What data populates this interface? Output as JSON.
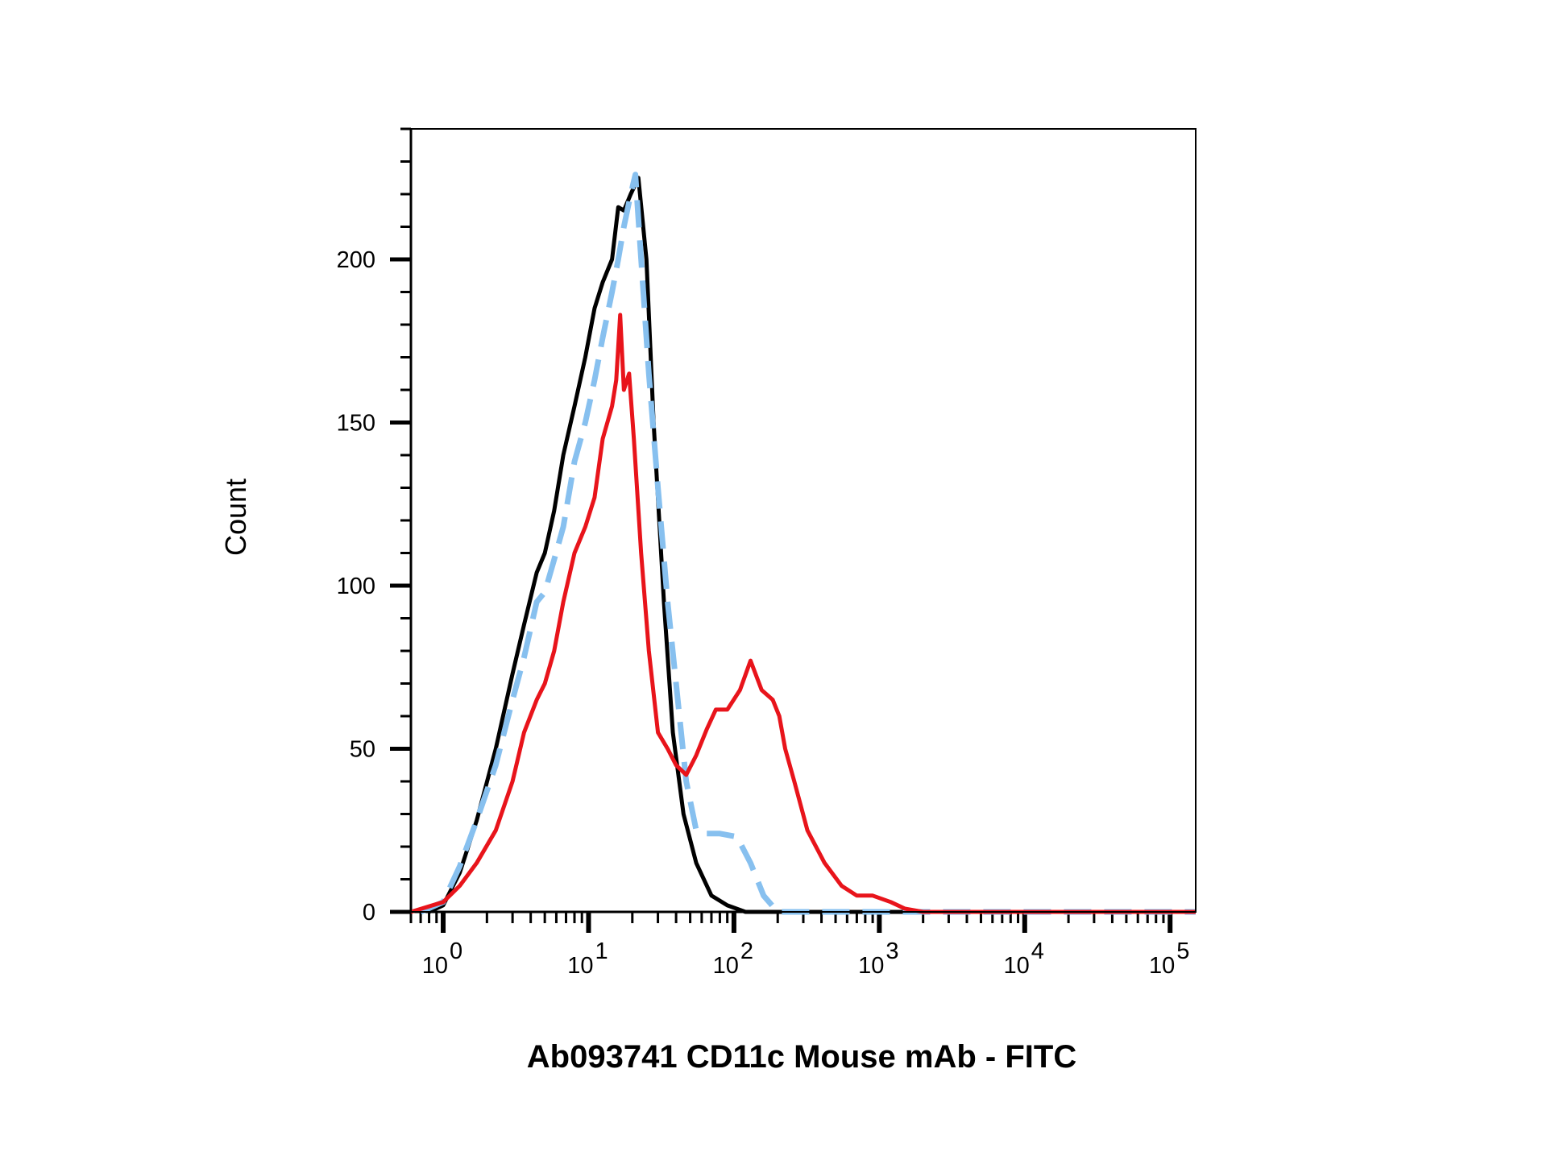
{
  "chart_data": {
    "type": "line",
    "title": "",
    "xlabel": "Ab093741 CD11c Mouse mAb - FITC",
    "ylabel": "Count",
    "x_scale": "log",
    "xlim": [
      0.6,
      150000
    ],
    "ylim": [
      0,
      240
    ],
    "x_ticks": [
      {
        "base": "10",
        "exp": "0",
        "value": 1
      },
      {
        "base": "10",
        "exp": "1",
        "value": 10
      },
      {
        "base": "10",
        "exp": "2",
        "value": 100
      },
      {
        "base": "10",
        "exp": "3",
        "value": 1000
      },
      {
        "base": "10",
        "exp": "4",
        "value": 10000
      },
      {
        "base": "10",
        "exp": "5",
        "value": 100000
      }
    ],
    "y_ticks": [
      {
        "label": "0",
        "value": 0
      },
      {
        "label": "50",
        "value": 50
      },
      {
        "label": "100",
        "value": 100
      },
      {
        "label": "150",
        "value": 150
      },
      {
        "label": "200",
        "value": 200
      }
    ],
    "grid": false,
    "legend": "none",
    "series": [
      {
        "color": "#000000",
        "style": "solid",
        "x": [
          0.8,
          1.0,
          1.3,
          1.7,
          2.3,
          3.0,
          3.6,
          4.4,
          5.0,
          5.8,
          6.7,
          8.0,
          9.5,
          11.0,
          12.5,
          14.5,
          16.0,
          17.5,
          19.5,
          22.0,
          25.0,
          28.0,
          33.0,
          38.0,
          45.0,
          55.0,
          70.0,
          90.0,
          120.0,
          160.0,
          250.0,
          400.0,
          1000.0,
          10000.0,
          100000.0,
          150000.0
        ],
        "y": [
          0,
          2,
          12,
          28,
          50,
          73,
          88,
          104,
          110,
          123,
          140,
          155,
          170,
          185,
          193,
          200,
          216,
          215,
          220,
          225,
          200,
          150,
          95,
          55,
          30,
          15,
          5,
          2,
          0,
          0,
          0,
          0,
          0,
          0,
          0,
          0
        ]
      },
      {
        "color": "#87c0ef",
        "style": "dashed",
        "x": [
          0.7,
          1.0,
          1.3,
          1.7,
          2.3,
          3.0,
          3.6,
          4.4,
          5.0,
          5.8,
          6.7,
          8.0,
          9.5,
          11.0,
          12.5,
          14.5,
          16.0,
          17.5,
          19.5,
          21.0,
          23.0,
          26.0,
          30.0,
          35.0,
          40.0,
          47.0,
          55.0,
          65.0,
          80.0,
          105.0,
          130.0,
          160.0,
          200.0,
          300.0,
          500.0,
          800.0,
          1200.0,
          2000.0,
          10000.0,
          150000.0
        ],
        "y": [
          0,
          3,
          14,
          28,
          45,
          65,
          78,
          95,
          98,
          108,
          118,
          138,
          150,
          163,
          176,
          190,
          200,
          210,
          220,
          226,
          200,
          165,
          130,
          95,
          70,
          40,
          25,
          24,
          24,
          23,
          15,
          5,
          0,
          0,
          0,
          0,
          0,
          0,
          0,
          0
        ]
      },
      {
        "color": "#e8141b",
        "style": "solid",
        "x": [
          0.6,
          1.0,
          1.3,
          1.7,
          2.3,
          3.0,
          3.6,
          4.4,
          5.0,
          5.8,
          6.7,
          8.0,
          9.5,
          11.0,
          12.5,
          14.5,
          15.5,
          16.5,
          17.5,
          19.0,
          20.5,
          23.0,
          26.0,
          30.0,
          35.0,
          40.0,
          47.0,
          55.0,
          65.0,
          75.0,
          90.0,
          110.0,
          130.0,
          155.0,
          185.0,
          205.0,
          225.0,
          260.0,
          320.0,
          420.0,
          550.0,
          700.0,
          900.0,
          1200.0,
          1500.0,
          2000.0,
          3000.0,
          5000.0,
          10000.0,
          50000.0,
          150000.0
        ],
        "y": [
          0,
          3,
          8,
          15,
          25,
          40,
          55,
          65,
          70,
          80,
          95,
          110,
          118,
          127,
          145,
          155,
          163,
          183,
          160,
          165,
          145,
          110,
          80,
          55,
          50,
          45,
          42,
          48,
          56,
          62,
          62,
          68,
          77,
          68,
          65,
          60,
          50,
          40,
          25,
          15,
          8,
          5,
          5,
          3,
          1,
          0,
          0,
          0,
          0,
          0,
          0
        ]
      }
    ]
  }
}
